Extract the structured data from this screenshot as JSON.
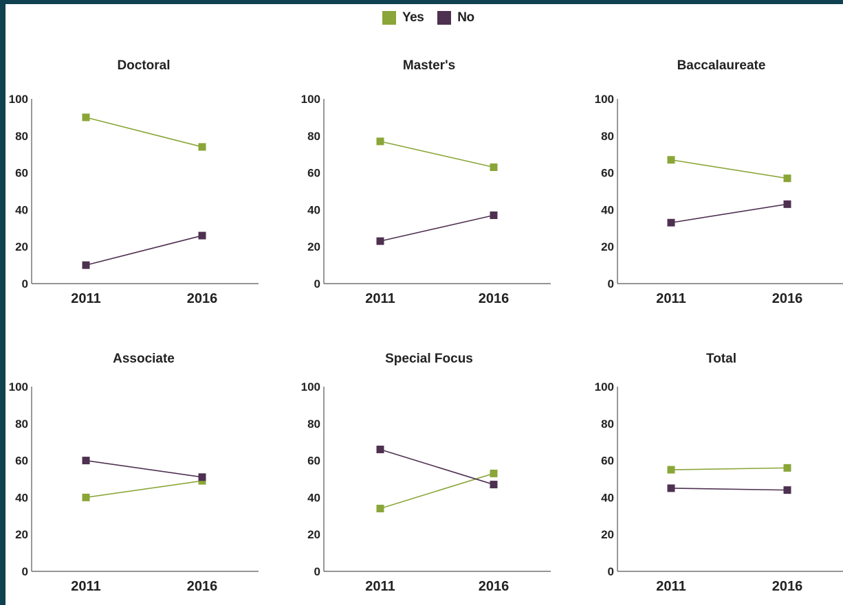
{
  "legend": {
    "items": [
      {
        "label": "Yes",
        "color": "#8aa638"
      },
      {
        "label": "No",
        "color": "#4e3050"
      }
    ]
  },
  "chart_data": [
    {
      "type": "line",
      "title": "Doctoral",
      "x": [
        "2011",
        "2016"
      ],
      "ylim": [
        0,
        100
      ],
      "yticks": [
        0,
        20,
        40,
        60,
        80,
        100
      ],
      "series": [
        {
          "name": "Yes",
          "color": "#8aa638",
          "values": [
            90,
            74
          ]
        },
        {
          "name": "No",
          "color": "#4e3050",
          "values": [
            10,
            26
          ]
        }
      ]
    },
    {
      "type": "line",
      "title": "Master's",
      "x": [
        "2011",
        "2016"
      ],
      "ylim": [
        0,
        100
      ],
      "yticks": [
        0,
        20,
        40,
        60,
        80,
        100
      ],
      "series": [
        {
          "name": "Yes",
          "color": "#8aa638",
          "values": [
            77,
            63
          ]
        },
        {
          "name": "No",
          "color": "#4e3050",
          "values": [
            23,
            37
          ]
        }
      ]
    },
    {
      "type": "line",
      "title": "Baccalaureate",
      "x": [
        "2011",
        "2016"
      ],
      "ylim": [
        0,
        100
      ],
      "yticks": [
        0,
        20,
        40,
        60,
        80,
        100
      ],
      "series": [
        {
          "name": "Yes",
          "color": "#8aa638",
          "values": [
            67,
            57
          ]
        },
        {
          "name": "No",
          "color": "#4e3050",
          "values": [
            33,
            43
          ]
        }
      ]
    },
    {
      "type": "line",
      "title": "Associate",
      "x": [
        "2011",
        "2016"
      ],
      "ylim": [
        0,
        100
      ],
      "yticks": [
        0,
        20,
        40,
        60,
        80,
        100
      ],
      "series": [
        {
          "name": "Yes",
          "color": "#8aa638",
          "values": [
            40,
            49
          ]
        },
        {
          "name": "No",
          "color": "#4e3050",
          "values": [
            60,
            51
          ]
        }
      ]
    },
    {
      "type": "line",
      "title": "Special Focus",
      "x": [
        "2011",
        "2016"
      ],
      "ylim": [
        0,
        100
      ],
      "yticks": [
        0,
        20,
        40,
        60,
        80,
        100
      ],
      "series": [
        {
          "name": "Yes",
          "color": "#8aa638",
          "values": [
            34,
            53
          ]
        },
        {
          "name": "No",
          "color": "#4e3050",
          "values": [
            66,
            47
          ]
        }
      ]
    },
    {
      "type": "line",
      "title": "Total",
      "x": [
        "2011",
        "2016"
      ],
      "ylim": [
        0,
        100
      ],
      "yticks": [
        0,
        20,
        40,
        60,
        80,
        100
      ],
      "series": [
        {
          "name": "Yes",
          "color": "#8aa638",
          "values": [
            55,
            56
          ]
        },
        {
          "name": "No",
          "color": "#4e3050",
          "values": [
            45,
            44
          ]
        }
      ]
    }
  ]
}
